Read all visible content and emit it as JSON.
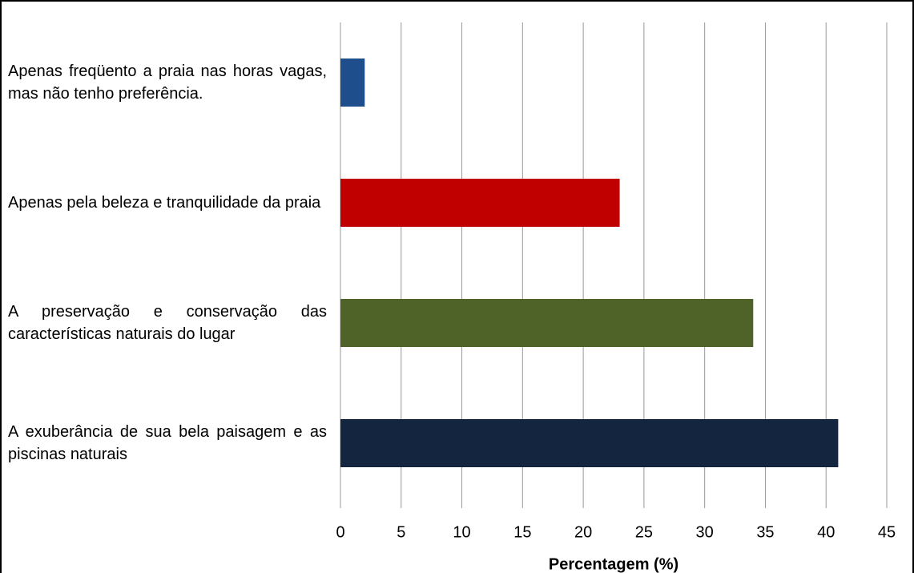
{
  "chart_data": {
    "type": "bar",
    "orientation": "horizontal",
    "categories": [
      "Apenas freqüento a praia nas horas vagas, mas não tenho preferência.",
      "Apenas pela beleza e tranquilidade da praia",
      "A preservação e conservação das características naturais do lugar",
      "A exuberância de sua bela paisagem e as piscinas naturais"
    ],
    "values": [
      2,
      23,
      34,
      41
    ],
    "colors": [
      "#1f4e8c",
      "#c00000",
      "#4f6228",
      "#14263f"
    ],
    "xlim": [
      0,
      45
    ],
    "xticks": [
      0,
      5,
      10,
      15,
      20,
      25,
      30,
      35,
      40,
      45
    ],
    "x_label": "Percentagem (%)",
    "grid": true
  }
}
